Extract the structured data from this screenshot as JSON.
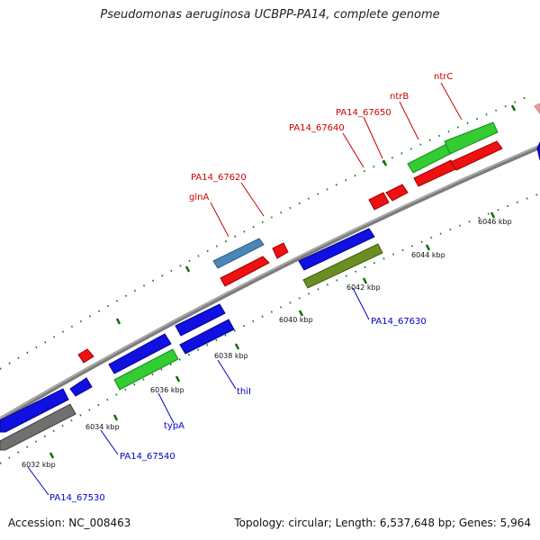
{
  "title": "Pseudomonas aeruginosa UCBPP-PA14, complete genome",
  "footer": {
    "accession": "Accession: NC_008463",
    "topology": "Topology: circular; Length: 6,537,648 bp; Genes: 5,964"
  },
  "colors": {
    "backbone": "#8a8a8a",
    "gc_dots": "#1a7a1a",
    "gene_blue": "#1010e0",
    "gene_red": "#ee1111",
    "gene_green": "#33cc33",
    "gene_olive": "#6b8e23",
    "gene_steelblue": "#4a86b8",
    "gene_gray": "#707070",
    "gene_pink": "#f4a0a0",
    "label_red": "#cc0000",
    "label_blue": "#0000cc"
  },
  "scale_labels": [
    "6032 kbp",
    "6034 kbp",
    "6036 kbp",
    "6038 kbp",
    "6040 kbp",
    "6042 kbp",
    "6044 kbp",
    "6046 kbp"
  ],
  "gene_labels_forward": [
    "glnA",
    "PA14_67620",
    "PA14_67640",
    "PA14_67650",
    "ntrB",
    "ntrC"
  ],
  "gene_labels_reverse": [
    "PA14_67530",
    "PA14_67540",
    "typA",
    "thiI",
    "PA14_67630"
  ]
}
